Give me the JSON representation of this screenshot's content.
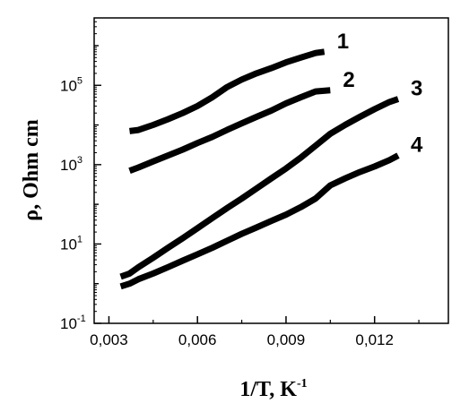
{
  "chart_data": {
    "type": "line",
    "title": "",
    "xlabel": "1/T, K",
    "xlabel_sup": "-1",
    "ylabel": "ρ, Ohm cm",
    "xlim": [
      0.0025,
      0.0145
    ],
    "ylim": [
      0.1,
      5000000
    ],
    "yscale": "log",
    "grid": false,
    "xticks": [
      {
        "v": 0.003,
        "label": "0,003"
      },
      {
        "v": 0.006,
        "label": "0,006"
      },
      {
        "v": 0.009,
        "label": "0,009"
      },
      {
        "v": 0.012,
        "label": "0,012"
      }
    ],
    "yticks": [
      {
        "v": 0.1,
        "base": "10",
        "exp": "-1"
      },
      {
        "v": 10,
        "base": "10",
        "exp": "1"
      },
      {
        "v": 1000,
        "base": "10",
        "exp": "3"
      },
      {
        "v": 100000,
        "base": "10",
        "exp": "5"
      }
    ],
    "series": [
      {
        "name": "1",
        "color": "#000000",
        "x": [
          0.0037,
          0.004,
          0.0045,
          0.005,
          0.0055,
          0.006,
          0.0065,
          0.007,
          0.0075,
          0.008,
          0.0085,
          0.009,
          0.0095,
          0.01,
          0.0103
        ],
        "y": [
          7000,
          7500,
          10000,
          14000,
          20000,
          30000,
          50000,
          90000,
          140000,
          200000,
          270000,
          380000,
          500000,
          650000,
          700000
        ]
      },
      {
        "name": "2",
        "color": "#000000",
        "x": [
          0.0037,
          0.004,
          0.0045,
          0.005,
          0.0055,
          0.006,
          0.0065,
          0.007,
          0.0075,
          0.008,
          0.0085,
          0.009,
          0.0095,
          0.01,
          0.0105
        ],
        "y": [
          700,
          850,
          1200,
          1700,
          2400,
          3500,
          5000,
          7500,
          11000,
          16000,
          23000,
          35000,
          50000,
          70000,
          75000
        ]
      },
      {
        "name": "3",
        "color": "#000000",
        "x": [
          0.0034,
          0.0037,
          0.004,
          0.0045,
          0.005,
          0.0055,
          0.006,
          0.0065,
          0.007,
          0.0075,
          0.008,
          0.0085,
          0.009,
          0.0095,
          0.01,
          0.0105,
          0.011,
          0.0115,
          0.012,
          0.0125,
          0.0128
        ],
        "y": [
          1.5,
          1.8,
          2.6,
          4.5,
          8,
          14,
          25,
          45,
          80,
          140,
          250,
          450,
          800,
          1500,
          3000,
          6000,
          10000,
          16000,
          25000,
          38000,
          45000
        ]
      },
      {
        "name": "4",
        "color": "#000000",
        "x": [
          0.0034,
          0.0037,
          0.004,
          0.0045,
          0.005,
          0.0055,
          0.006,
          0.0065,
          0.007,
          0.0075,
          0.008,
          0.0085,
          0.009,
          0.0095,
          0.01,
          0.0105,
          0.011,
          0.0115,
          0.012,
          0.0125,
          0.0128
        ],
        "y": [
          0.85,
          1.0,
          1.3,
          1.8,
          2.6,
          3.8,
          5.5,
          8,
          12,
          18,
          26,
          38,
          55,
          85,
          140,
          300,
          450,
          650,
          900,
          1300,
          1700
        ]
      }
    ]
  }
}
